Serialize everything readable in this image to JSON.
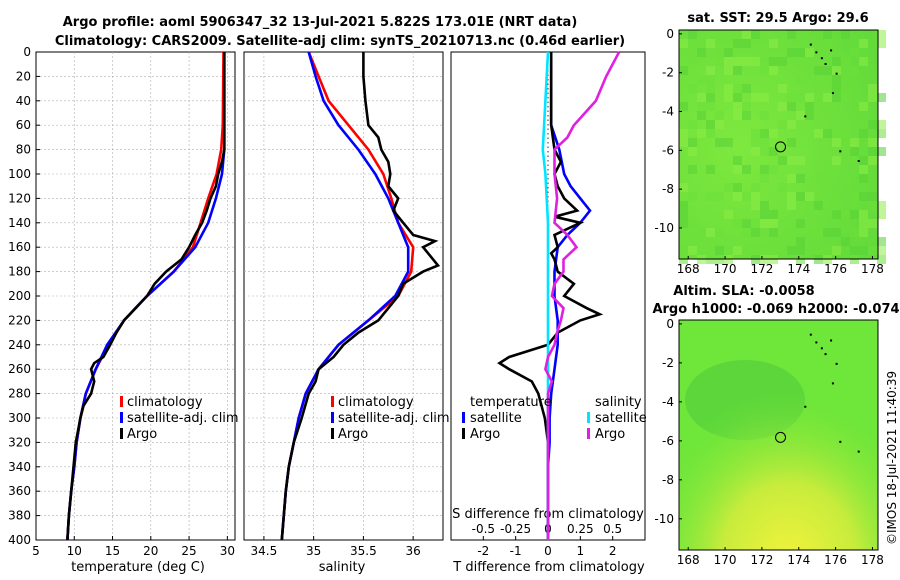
{
  "header": {
    "title_line1": "Argo profile: aoml 5906347_32 13-Jul-2021 5.822S 173.01E (NRT data)",
    "title_line2": "Climatology: CARS2009. Satellite-adj clim: synTS_20210713.nc (0.46d earlier)"
  },
  "side_label": "©IMOS 18-Jul-2021 11:40:39",
  "colors": {
    "clim": "#ff0000",
    "sat": "#0000ff",
    "argo": "#000000",
    "sal_sat": "#00e5ff",
    "sal_argo": "#e020e0",
    "map_green": "#6ee63a",
    "map_yellow": "#e6f03c"
  },
  "chart_data": [
    {
      "type": "line",
      "name": "temperature",
      "xlabel": "temperature (deg C)",
      "ylabel": "",
      "xlim": [
        5,
        31
      ],
      "ylim": [
        400,
        0
      ],
      "xticks": [
        5,
        10,
        15,
        20,
        25,
        30
      ],
      "yticks": [
        0,
        20,
        40,
        60,
        80,
        100,
        120,
        140,
        160,
        180,
        200,
        220,
        240,
        260,
        280,
        300,
        320,
        340,
        360,
        380,
        400
      ],
      "grid": true,
      "legend": [
        "climatology",
        "satellite-adj. clim",
        "Argo"
      ],
      "series": [
        {
          "name": "climatology",
          "depth": [
            0,
            60,
            80,
            100,
            120,
            140,
            160,
            180,
            200,
            220,
            240,
            260,
            280,
            300,
            320,
            340,
            360,
            380,
            400
          ],
          "values": [
            29.5,
            29.4,
            29.2,
            28.6,
            27.5,
            26.5,
            25.5,
            23.0,
            19.5,
            16.5,
            14.5,
            12.8,
            11.5,
            10.8,
            10.3,
            10.0,
            9.6,
            9.3,
            9.1
          ]
        },
        {
          "name": "satellite-adj. clim",
          "depth": [
            0,
            60,
            80,
            100,
            120,
            140,
            160,
            180,
            200,
            220,
            240,
            260,
            280,
            300,
            320,
            340,
            360,
            380,
            400
          ],
          "values": [
            29.6,
            29.6,
            29.6,
            29.3,
            28.5,
            27.5,
            25.8,
            23.0,
            19.5,
            16.5,
            14.3,
            12.8,
            11.5,
            10.8,
            10.3,
            10.0,
            9.6,
            9.3,
            9.1
          ]
        },
        {
          "name": "Argo",
          "depth": [
            0,
            80,
            90,
            100,
            110,
            120,
            130,
            140,
            150,
            160,
            170,
            180,
            190,
            200,
            210,
            220,
            230,
            240,
            250,
            255,
            260,
            270,
            280,
            290,
            300,
            320,
            340,
            360,
            380,
            400
          ],
          "values": [
            29.6,
            29.6,
            29.3,
            28.8,
            28.5,
            27.8,
            27.3,
            26.7,
            25.8,
            25.0,
            24.0,
            22.0,
            20.5,
            19.5,
            18.0,
            16.5,
            15.5,
            14.7,
            13.8,
            12.6,
            12.2,
            12.6,
            12.2,
            11.2,
            10.8,
            10.2,
            9.9,
            9.6,
            9.3,
            9.1
          ]
        }
      ]
    },
    {
      "type": "line",
      "name": "salinity",
      "xlabel": "salinity",
      "xlim": [
        34.3,
        36.3
      ],
      "ylim": [
        400,
        0
      ],
      "xticks": [
        34.5,
        35,
        35.5,
        36
      ],
      "grid": true,
      "legend": [
        "climatology",
        "satellite-adj. clim",
        "Argo"
      ],
      "series": [
        {
          "name": "climatology",
          "depth": [
            0,
            20,
            40,
            60,
            80,
            100,
            120,
            140,
            160,
            180,
            200,
            220,
            240,
            260,
            280,
            300,
            320,
            340,
            360,
            380,
            400
          ],
          "values": [
            34.95,
            35.05,
            35.15,
            35.35,
            35.55,
            35.7,
            35.78,
            35.85,
            36.0,
            35.98,
            35.85,
            35.55,
            35.25,
            35.05,
            34.92,
            34.85,
            34.8,
            34.75,
            34.72,
            34.7,
            34.68
          ]
        },
        {
          "name": "satellite-adj. clim",
          "depth": [
            0,
            20,
            40,
            60,
            80,
            100,
            120,
            140,
            160,
            180,
            200,
            220,
            240,
            260,
            280,
            300,
            320,
            340,
            360,
            380,
            400
          ],
          "values": [
            34.95,
            35.02,
            35.1,
            35.25,
            35.45,
            35.62,
            35.75,
            35.85,
            35.95,
            35.95,
            35.82,
            35.55,
            35.25,
            35.05,
            34.92,
            34.85,
            34.8,
            34.75,
            34.72,
            34.7,
            34.68
          ]
        },
        {
          "name": "Argo",
          "depth": [
            0,
            20,
            40,
            60,
            70,
            80,
            90,
            100,
            110,
            120,
            130,
            140,
            150,
            155,
            160,
            170,
            175,
            180,
            190,
            200,
            210,
            220,
            230,
            240,
            250,
            260,
            270,
            280,
            300,
            320,
            340,
            360,
            380,
            400
          ],
          "values": [
            35.5,
            35.5,
            35.52,
            35.55,
            35.65,
            35.68,
            35.75,
            35.77,
            35.75,
            35.85,
            35.8,
            35.9,
            36.0,
            36.22,
            36.1,
            36.2,
            36.25,
            36.1,
            35.9,
            35.85,
            35.75,
            35.65,
            35.45,
            35.3,
            35.2,
            35.05,
            35.02,
            34.95,
            34.88,
            34.8,
            34.75,
            34.72,
            34.7,
            34.68
          ]
        }
      ]
    },
    {
      "type": "line",
      "name": "difference",
      "xlabel": "T difference from climatology",
      "xlabel2": "S difference from climatology",
      "xlim": [
        -3,
        3
      ],
      "ylim": [
        400,
        0
      ],
      "xticks": [
        -2,
        -1,
        0,
        1,
        2
      ],
      "xticks2_labels": [
        "-0.5",
        "-0.25",
        "0",
        "0.25",
        "0.5"
      ],
      "xticks2_values": [
        -0.5,
        -0.25,
        0,
        0.25,
        0.5
      ],
      "s_scale": 4,
      "grid": false,
      "legend_left_title": "temperature",
      "legend_right_title": "salinity",
      "legend_left": [
        "satellite",
        "Argo"
      ],
      "legend_right": [
        "satellite",
        "Argo"
      ],
      "series": [
        {
          "name": "T satellite",
          "color": "sat",
          "depth": [
            0,
            60,
            80,
            100,
            110,
            120,
            130,
            140,
            150,
            160,
            180,
            200,
            220,
            240,
            260,
            280,
            300,
            320,
            340,
            360,
            380,
            400
          ],
          "values": [
            0.1,
            0.1,
            0.35,
            0.5,
            0.7,
            1.0,
            1.3,
            1.0,
            0.6,
            0.3,
            0.2,
            0.2,
            0.3,
            0.3,
            0.2,
            0.1,
            0.05,
            0.05,
            0.0,
            0.0,
            0.0,
            0.0
          ]
        },
        {
          "name": "T Argo",
          "color": "argo",
          "depth": [
            0,
            60,
            80,
            90,
            100,
            110,
            120,
            130,
            135,
            140,
            150,
            160,
            165,
            170,
            180,
            190,
            200,
            210,
            215,
            220,
            230,
            240,
            250,
            255,
            260,
            270,
            280,
            300,
            320,
            340,
            360,
            380,
            400
          ],
          "values": [
            0.1,
            0.1,
            0.2,
            0.4,
            0.2,
            0.3,
            0.5,
            0.9,
            0.2,
            1.0,
            0.2,
            0.3,
            0.1,
            0.2,
            0.3,
            0.8,
            0.5,
            1.2,
            1.6,
            1.0,
            0.3,
            0.0,
            -1.2,
            -1.5,
            -1.2,
            -0.5,
            -0.3,
            -0.1,
            0.0,
            0.0,
            0.0,
            0.0,
            0.0
          ]
        },
        {
          "name": "S satellite",
          "color": "sal_sat",
          "depth": [
            0,
            20,
            40,
            60,
            80,
            100,
            120,
            140,
            160,
            180,
            200,
            220,
            240,
            260,
            280,
            300,
            320,
            340,
            360,
            380,
            400
          ],
          "values": [
            0.0,
            -0.01,
            -0.02,
            -0.03,
            -0.04,
            -0.02,
            -0.01,
            0.0,
            0.0,
            0.0,
            0.0,
            0.0,
            0.0,
            0.0,
            0.0,
            0.0,
            0.0,
            0.0,
            0.0,
            0.0,
            0.0
          ]
        },
        {
          "name": "S Argo",
          "color": "sal_argo",
          "depth": [
            0,
            20,
            40,
            60,
            70,
            80,
            100,
            120,
            140,
            150,
            160,
            170,
            180,
            190,
            200,
            210,
            220,
            230,
            240,
            250,
            260,
            270,
            280,
            300,
            320,
            340,
            360,
            380,
            400
          ],
          "values": [
            0.55,
            0.45,
            0.37,
            0.2,
            0.15,
            0.05,
            0.05,
            0.07,
            0.05,
            0.15,
            0.22,
            0.12,
            0.12,
            0.05,
            0.03,
            0.12,
            0.1,
            0.07,
            0.05,
            0.0,
            -0.02,
            0.03,
            0.0,
            0.0,
            0.0,
            0.0,
            0.0,
            0.0,
            0.0
          ]
        }
      ]
    },
    {
      "type": "heatmap",
      "name": "sst_map",
      "title": "sat. SST: 29.5 Argo: 29.6",
      "xticks": [
        168,
        170,
        172,
        174,
        176,
        178
      ],
      "yticks": [
        0,
        -2,
        -4,
        -6,
        -8,
        -10
      ],
      "xlim": [
        167.5,
        178.3
      ],
      "ylim": [
        -11.6,
        0.2
      ],
      "marker": {
        "lon": 173.01,
        "lat": -5.822
      }
    },
    {
      "type": "heatmap",
      "name": "sla_map",
      "title": "Altim. SLA: -0.0058",
      "title2": "Argo h1000: -0.069 h2000: -0.074",
      "xticks": [
        168,
        170,
        172,
        174,
        176,
        178
      ],
      "yticks": [
        0,
        -2,
        -4,
        -6,
        -8,
        -10
      ],
      "xlim": [
        167.5,
        178.3
      ],
      "ylim": [
        -11.6,
        0.2
      ],
      "marker": {
        "lon": 173.01,
        "lat": -5.822
      }
    }
  ]
}
